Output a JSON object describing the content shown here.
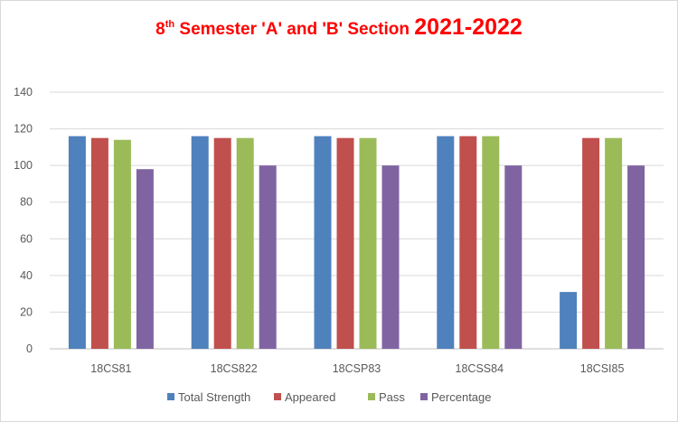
{
  "chart_data": {
    "type": "bar",
    "title": {
      "prefix": "8",
      "superscript": "th",
      "main": " Semester 'A' and 'B' Section ",
      "year": "2021-2022"
    },
    "categories": [
      "18CS81",
      "18CS822",
      "18CSP83",
      "18CSS84",
      "18CSI85"
    ],
    "series": [
      {
        "name": "Total Strength",
        "color": "#4f81bd",
        "values": [
          116,
          116,
          116,
          116,
          31
        ]
      },
      {
        "name": "Appeared",
        "color": "#c0504d",
        "values": [
          115,
          115,
          115,
          116,
          115
        ]
      },
      {
        "name": "Pass",
        "color": "#9bbb59",
        "values": [
          114,
          115,
          115,
          116,
          115
        ]
      },
      {
        "name": "Percentage",
        "color": "#8064a2",
        "values": [
          98,
          100,
          100,
          100,
          100
        ]
      }
    ],
    "ylim": [
      0,
      140
    ],
    "yticks": [
      0,
      20,
      40,
      60,
      80,
      100,
      120,
      140
    ],
    "grid": true,
    "legend": "bottom"
  }
}
